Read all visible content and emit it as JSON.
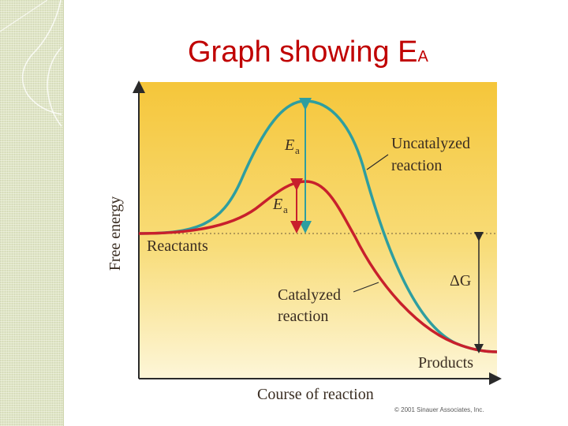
{
  "slide": {
    "title_main": "Graph showing E",
    "title_sub": "A",
    "title_color": "#c00000"
  },
  "diagram": {
    "y_axis_label": "Free energy",
    "x_axis_label": "Course of reaction",
    "labels": {
      "uncatalyzed_line1": "Uncatalyzed",
      "uncatalyzed_line2": "reaction",
      "catalyzed_line1": "Catalyzed",
      "catalyzed_line2": "reaction",
      "reactants": "Reactants",
      "products": "Products",
      "ea_symbol": "E",
      "ea_subscript": "a",
      "delta_g": "ΔG"
    },
    "copyright": "© 2001 Sinauer Associates, Inc.",
    "colors": {
      "uncatalyzed_curve": "#2e9ea0",
      "catalyzed_curve": "#c8202c",
      "background_top": "#f5c63a",
      "background_bottom": "#fdf6d8"
    }
  }
}
